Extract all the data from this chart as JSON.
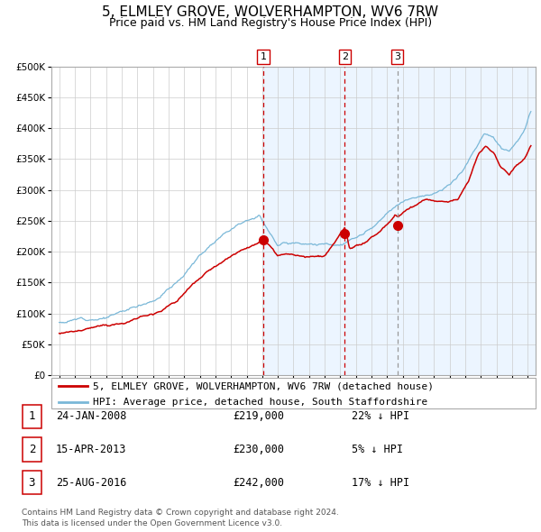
{
  "title": "5, ELMLEY GROVE, WOLVERHAMPTON, WV6 7RW",
  "subtitle": "Price paid vs. HM Land Registry's House Price Index (HPI)",
  "legend_house": "5, ELMLEY GROVE, WOLVERHAMPTON, WV6 7RW (detached house)",
  "legend_hpi": "HPI: Average price, detached house, South Staffordshire",
  "footer1": "Contains HM Land Registry data © Crown copyright and database right 2024.",
  "footer2": "This data is licensed under the Open Government Licence v3.0.",
  "transactions": [
    {
      "num": 1,
      "date": "24-JAN-2008",
      "price": "£219,000",
      "pct": "22% ↓ HPI",
      "date_decimal": 2008.07
    },
    {
      "num": 2,
      "date": "15-APR-2013",
      "price": "£230,000",
      "pct": "5% ↓ HPI",
      "date_decimal": 2013.29
    },
    {
      "num": 3,
      "date": "25-AUG-2016",
      "price": "£242,000",
      "pct": "17% ↓ HPI",
      "date_decimal": 2016.65
    }
  ],
  "hpi_color": "#7ab8d8",
  "house_color": "#cc0000",
  "vline_red_color": "#cc0000",
  "vline_gray_color": "#999999",
  "bg_shade_color": "#ddeeff",
  "grid_color": "#cccccc",
  "ylim": [
    0,
    500000
  ],
  "xlim_start": 1994.5,
  "xlim_end": 2025.5,
  "title_fontsize": 11,
  "subtitle_fontsize": 9,
  "tick_fontsize": 7.5,
  "legend_fontsize": 8,
  "table_fontsize": 8.5,
  "footer_fontsize": 6.5,
  "hpi_control_t": [
    1995.0,
    1996.5,
    1998.0,
    1999.5,
    2001.0,
    2002.5,
    2004.0,
    2005.5,
    2007.0,
    2007.8,
    2009.0,
    2010.0,
    2011.0,
    2012.0,
    2013.0,
    2014.0,
    2015.0,
    2016.0,
    2017.0,
    2018.0,
    2019.0,
    2020.0,
    2020.8,
    2021.5,
    2022.2,
    2022.8,
    2023.3,
    2023.8,
    2024.3,
    2024.8,
    2025.2
  ],
  "hpi_control_v": [
    85000,
    92000,
    100000,
    112000,
    130000,
    160000,
    205000,
    245000,
    275000,
    282000,
    238000,
    242000,
    245000,
    244000,
    244000,
    252000,
    265000,
    285000,
    302000,
    315000,
    320000,
    330000,
    355000,
    385000,
    415000,
    410000,
    395000,
    390000,
    405000,
    425000,
    450000
  ],
  "house_control_t": [
    1995.0,
    1996.5,
    1998.0,
    1999.5,
    2001.0,
    2002.5,
    2004.0,
    2005.5,
    2007.0,
    2007.8,
    2008.07,
    2009.0,
    2010.0,
    2011.0,
    2012.0,
    2013.29,
    2013.6,
    2014.5,
    2015.5,
    2016.5,
    2016.65,
    2017.5,
    2018.5,
    2019.5,
    2020.5,
    2021.2,
    2021.8,
    2022.3,
    2022.8,
    2023.3,
    2023.8,
    2024.3,
    2024.8,
    2025.2
  ],
  "house_control_v": [
    68000,
    72000,
    78000,
    87000,
    100000,
    125000,
    160000,
    185000,
    205000,
    215000,
    219000,
    188000,
    192000,
    190000,
    190000,
    230000,
    195000,
    202000,
    218000,
    245000,
    242000,
    258000,
    268000,
    262000,
    268000,
    298000,
    340000,
    355000,
    345000,
    322000,
    310000,
    328000,
    340000,
    360000
  ],
  "house_prices_at_trans": [
    219000,
    230000,
    242000
  ]
}
